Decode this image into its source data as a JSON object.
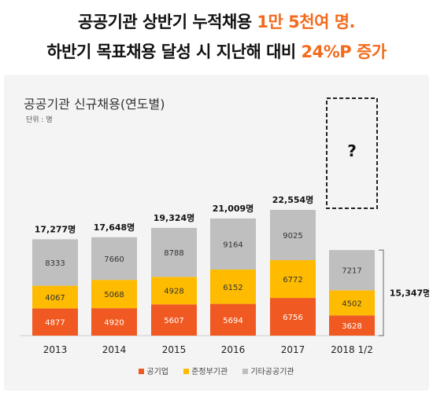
{
  "headline": {
    "line1_pre": "공공기관 상반기 누적채용 ",
    "line1_hl": "1만 5천여 명.",
    "line2_pre": "하반기 목표채용 달성 시 지난해 대비 ",
    "line2_hl": "24%P 증가"
  },
  "colors": {
    "accent": "#f26b1d",
    "public_corp": "#f05a22",
    "quasi_gov": "#ffbb00",
    "other": "#bfbfbf"
  },
  "chart_data": {
    "type": "bar",
    "stacked": true,
    "title": "공공기관 신규채용(연도별)",
    "unit": "단위 : 명",
    "categories": [
      "2013",
      "2014",
      "2015",
      "2016",
      "2017",
      "2018 1/2"
    ],
    "series": [
      {
        "name": "공기업",
        "values": [
          4877,
          4920,
          5607,
          5694,
          6756,
          3628
        ]
      },
      {
        "name": "준정부기관",
        "values": [
          4067,
          5068,
          4928,
          6152,
          6772,
          4502
        ]
      },
      {
        "name": "기타공공기관",
        "values": [
          8333,
          7660,
          8788,
          9164,
          9025,
          7217
        ]
      }
    ],
    "totals": [
      "17,277명",
      "17,648명",
      "19,324명",
      "21,009명",
      "22,554명",
      null
    ],
    "annotations": {
      "unknown": "?",
      "half_total": "15,347명"
    },
    "legend_position": "bottom",
    "grid": false
  }
}
